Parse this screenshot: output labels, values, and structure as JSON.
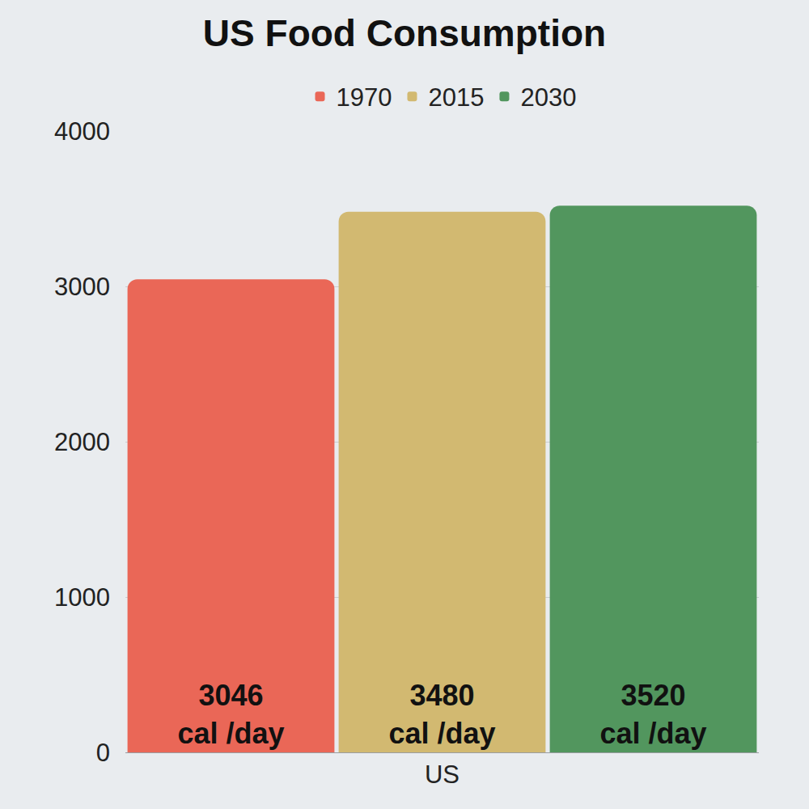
{
  "chart_data": {
    "type": "bar",
    "title": "US Food Consumption",
    "categories": [
      "US"
    ],
    "series": [
      {
        "name": "1970",
        "color": "#ea6757",
        "values": [
          3046
        ],
        "value_labels": [
          "3046 cal /day"
        ]
      },
      {
        "name": "2015",
        "color": "#d2b971",
        "values": [
          3480
        ],
        "value_labels": [
          "3480 cal /day"
        ]
      },
      {
        "name": "2030",
        "color": "#52965e",
        "values": [
          3520
        ],
        "value_labels": [
          "3520 cal /day"
        ]
      }
    ],
    "ylim": [
      0,
      4000
    ],
    "yticks": [
      0,
      1000,
      2000,
      3000,
      4000
    ],
    "grid": true,
    "legend": "top",
    "data_labels": true
  }
}
